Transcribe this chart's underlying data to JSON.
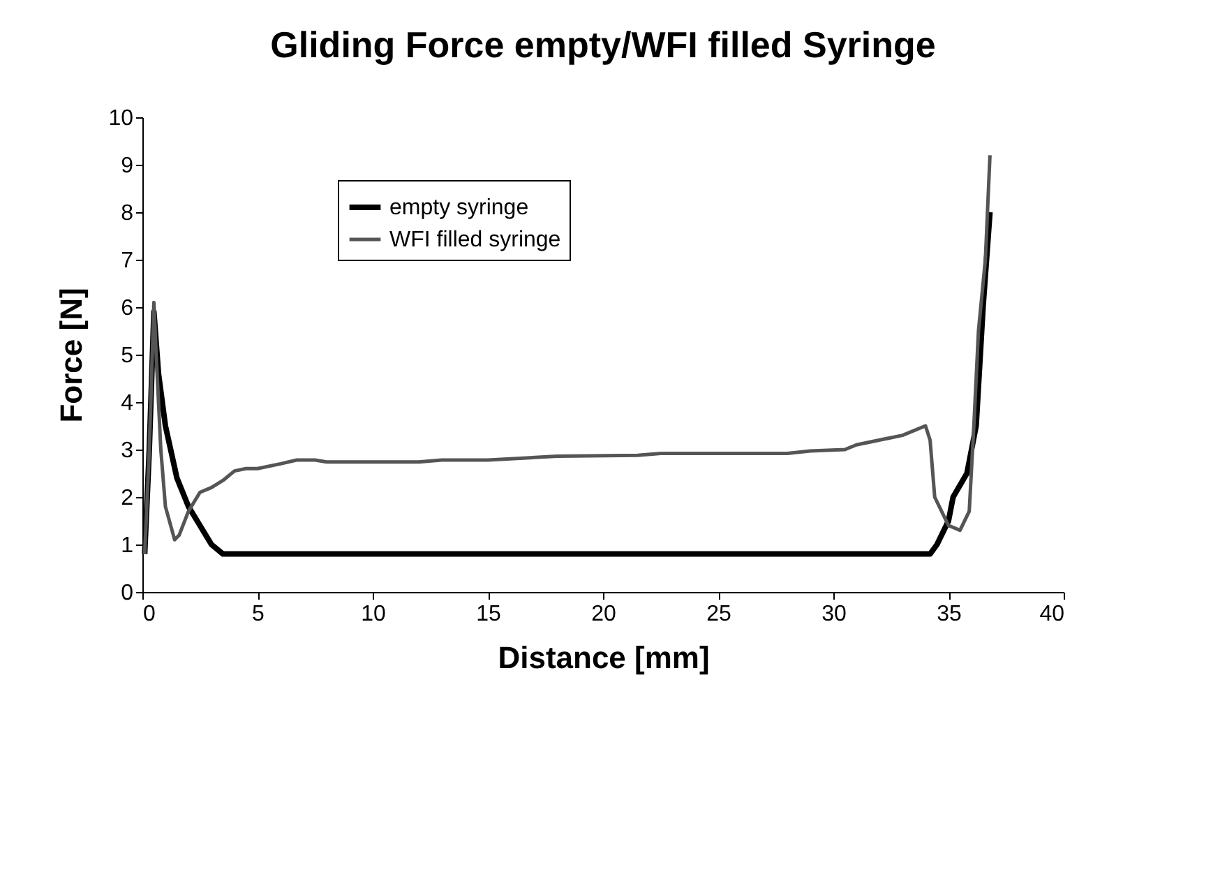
{
  "chart_data": {
    "type": "line",
    "title": "Gliding Force empty/WFI filled Syringe",
    "xlabel": "Distance [mm]",
    "ylabel": "Force [N]",
    "xlim": [
      0,
      40
    ],
    "xticks": [
      0,
      5,
      10,
      15,
      20,
      25,
      30,
      35,
      40
    ],
    "ylim": [
      0,
      10
    ],
    "yticks": [
      0,
      1,
      2,
      3,
      4,
      5,
      6,
      7,
      8,
      9,
      10
    ],
    "grid": false,
    "legend": "top left",
    "marker": "none",
    "line_style": "solid",
    "series": [
      {
        "name": "empty syringe",
        "color": "#000000",
        "x": [
          0.1,
          0.3,
          0.5,
          0.7,
          1.0,
          1.5,
          2.0,
          2.5,
          3.0,
          3.5,
          10,
          20,
          30,
          34.2,
          34.5,
          35.0,
          35.2,
          35.8,
          36.2,
          36.5,
          36.8
        ],
        "values": [
          0.8,
          3.0,
          5.9,
          4.6,
          3.5,
          2.4,
          1.8,
          1.4,
          1.0,
          0.8,
          0.8,
          0.8,
          0.8,
          0.8,
          1.0,
          1.5,
          2.0,
          2.5,
          3.5,
          6.0,
          8.0
        ]
      },
      {
        "name": "WFI filled syringe",
        "color": "#555555",
        "x": [
          0.1,
          0.3,
          0.5,
          0.6,
          0.8,
          1.0,
          1.4,
          1.6,
          2.0,
          2.5,
          3.0,
          3.5,
          4.0,
          4.5,
          5.0,
          6.0,
          6.7,
          7.5,
          8.0,
          12.0,
          13.0,
          15.0,
          18.0,
          21.5,
          22.5,
          28.0,
          29.0,
          30.5,
          31.0,
          33.0,
          34.0,
          34.2,
          34.4,
          35.0,
          35.5,
          35.9,
          36.1,
          36.3,
          36.6,
          36.8
        ],
        "values": [
          0.8,
          3.0,
          6.1,
          5.0,
          3.0,
          1.8,
          1.1,
          1.2,
          1.7,
          2.1,
          2.2,
          2.35,
          2.55,
          2.6,
          2.6,
          2.7,
          2.78,
          2.78,
          2.74,
          2.74,
          2.78,
          2.78,
          2.86,
          2.88,
          2.92,
          2.92,
          2.97,
          3.0,
          3.1,
          3.3,
          3.5,
          3.2,
          2.0,
          1.4,
          1.3,
          1.7,
          3.5,
          5.5,
          7.0,
          9.2
        ]
      }
    ]
  }
}
